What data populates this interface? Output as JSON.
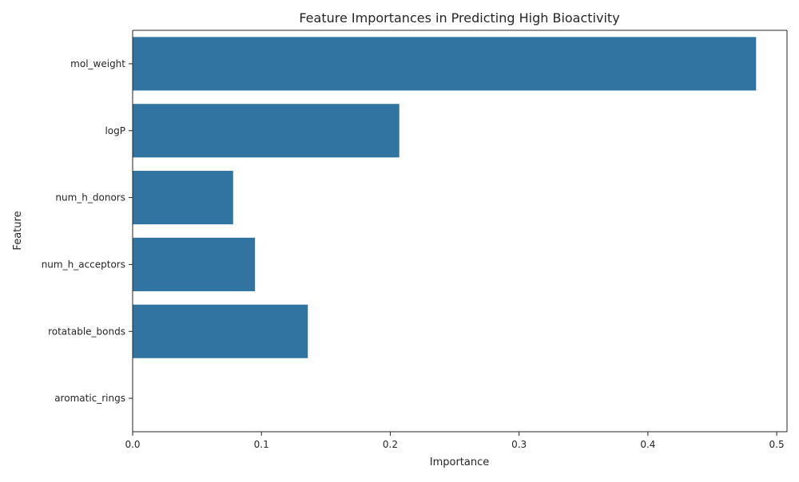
{
  "chart_data": {
    "type": "bar",
    "orientation": "horizontal",
    "title": "Feature Importances in Predicting High Bioactivity",
    "xlabel": "Importance",
    "ylabel": "Feature",
    "categories": [
      "mol_weight",
      "logP",
      "num_h_donors",
      "num_h_acceptors",
      "rotatable_bonds",
      "aromatic_rings"
    ],
    "values": [
      0.484,
      0.207,
      0.078,
      0.095,
      0.136,
      0.0
    ],
    "xlim": [
      0,
      0.508
    ],
    "xticks": [
      0.0,
      0.1,
      0.2,
      0.3,
      0.4,
      0.5
    ],
    "xtick_labels": [
      "0.0",
      "0.1",
      "0.2",
      "0.3",
      "0.4",
      "0.5"
    ],
    "grid": false,
    "bar_color": "#3274a1"
  }
}
